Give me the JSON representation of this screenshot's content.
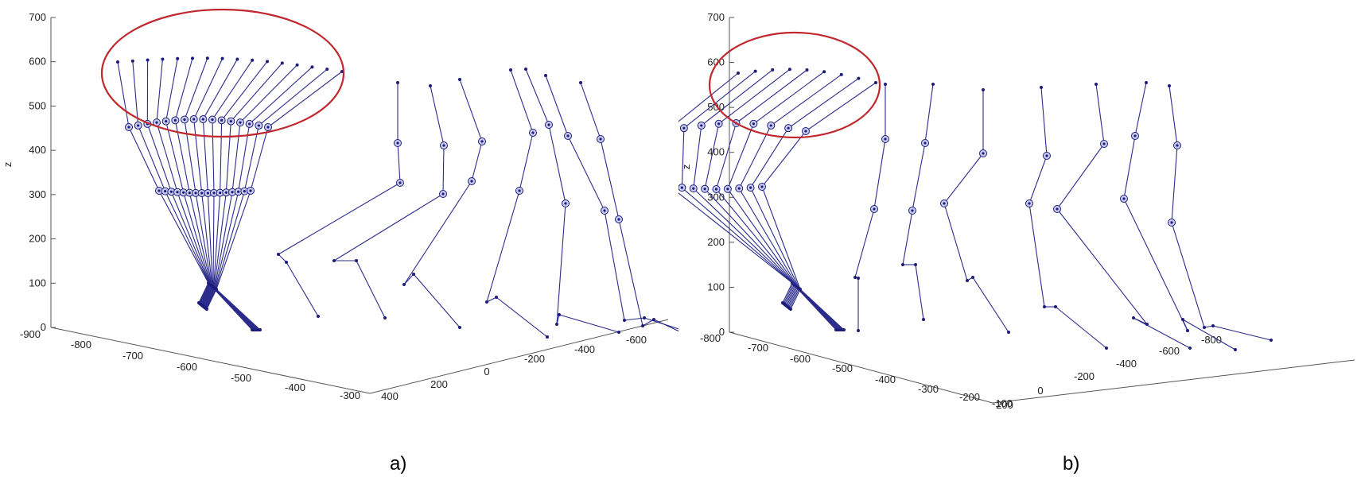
{
  "colors": {
    "skeleton": "#2b2b8c",
    "joint": "#1c1c7a",
    "highlight_ellipse": "#c0282d",
    "axis": "#555555"
  },
  "chart_data": [
    {
      "type": "3d-line",
      "caption": "a)",
      "zlabel": "z",
      "zlim": [
        0,
        700
      ],
      "z_ticks": [
        "700",
        "600",
        "500",
        "400",
        "300",
        "200",
        "100",
        "0"
      ],
      "x_ticks": [
        "-900",
        "-800",
        "-700",
        "-600",
        "-500",
        "-400",
        "-300"
      ],
      "y_ticks": [
        "400",
        "200",
        "0",
        "-200",
        "-400",
        "-600"
      ],
      "grid": false,
      "highlight": "ellipse around head and upper-body joints of the first frames",
      "frames": 22
    },
    {
      "type": "3d-line",
      "caption": "b)",
      "zlabel": "z",
      "zlim": [
        0,
        700
      ],
      "z_ticks": [
        "700",
        "600",
        "500",
        "400",
        "300",
        "200",
        "100",
        "0"
      ],
      "x_ticks": [
        "-800",
        "-700",
        "-600",
        "-500",
        "-400",
        "-300",
        "-200",
        "-100"
      ],
      "y_ticks": [
        "200",
        "0",
        "-200",
        "-400",
        "-600",
        "-800"
      ],
      "grid": false,
      "highlight": "ellipse around head and upper-body joints of the first frames",
      "frames": 14
    }
  ]
}
